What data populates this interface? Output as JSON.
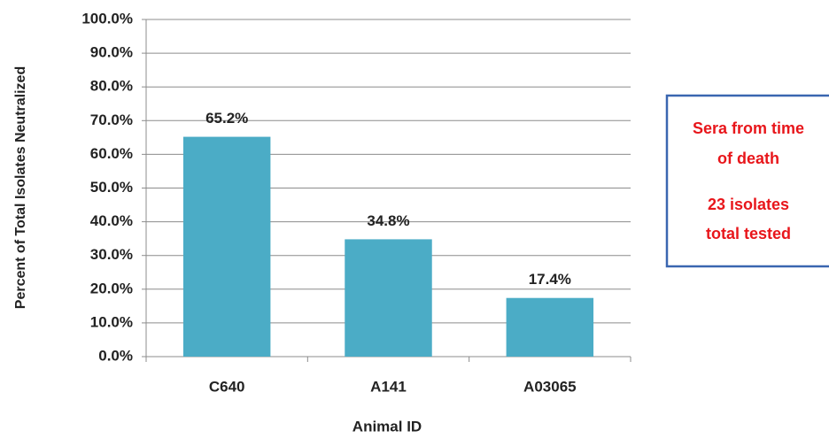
{
  "chart_data": {
    "type": "bar",
    "y_label": "Percent of Total Isolates Neutralized",
    "x_label": "Animal ID",
    "categories": [
      "C640",
      "A141",
      "A03065"
    ],
    "values": [
      65.2,
      34.8,
      17.4
    ],
    "value_labels": [
      "65.2%",
      "34.8%",
      "17.4%"
    ],
    "color": "#4bacc6",
    "ylim": [
      0,
      100
    ],
    "yticks": [
      {
        "value": 0,
        "label": "0.0%"
      },
      {
        "value": 10,
        "label": "10.0%"
      },
      {
        "value": 20,
        "label": "20.0%"
      },
      {
        "value": 30,
        "label": "30.0%"
      },
      {
        "value": 40,
        "label": "40.0%"
      },
      {
        "value": 50,
        "label": "50.0%"
      },
      {
        "value": 60,
        "label": "60.0%"
      },
      {
        "value": 70,
        "label": "70.0%"
      },
      {
        "value": 80,
        "label": "80.0%"
      },
      {
        "value": 90,
        "label": "90.0%"
      },
      {
        "value": 100,
        "label": "100.0%"
      }
    ],
    "grid": true,
    "annotation": [
      "Sera from time",
      "of death",
      "23 isolates",
      "total tested"
    ]
  }
}
